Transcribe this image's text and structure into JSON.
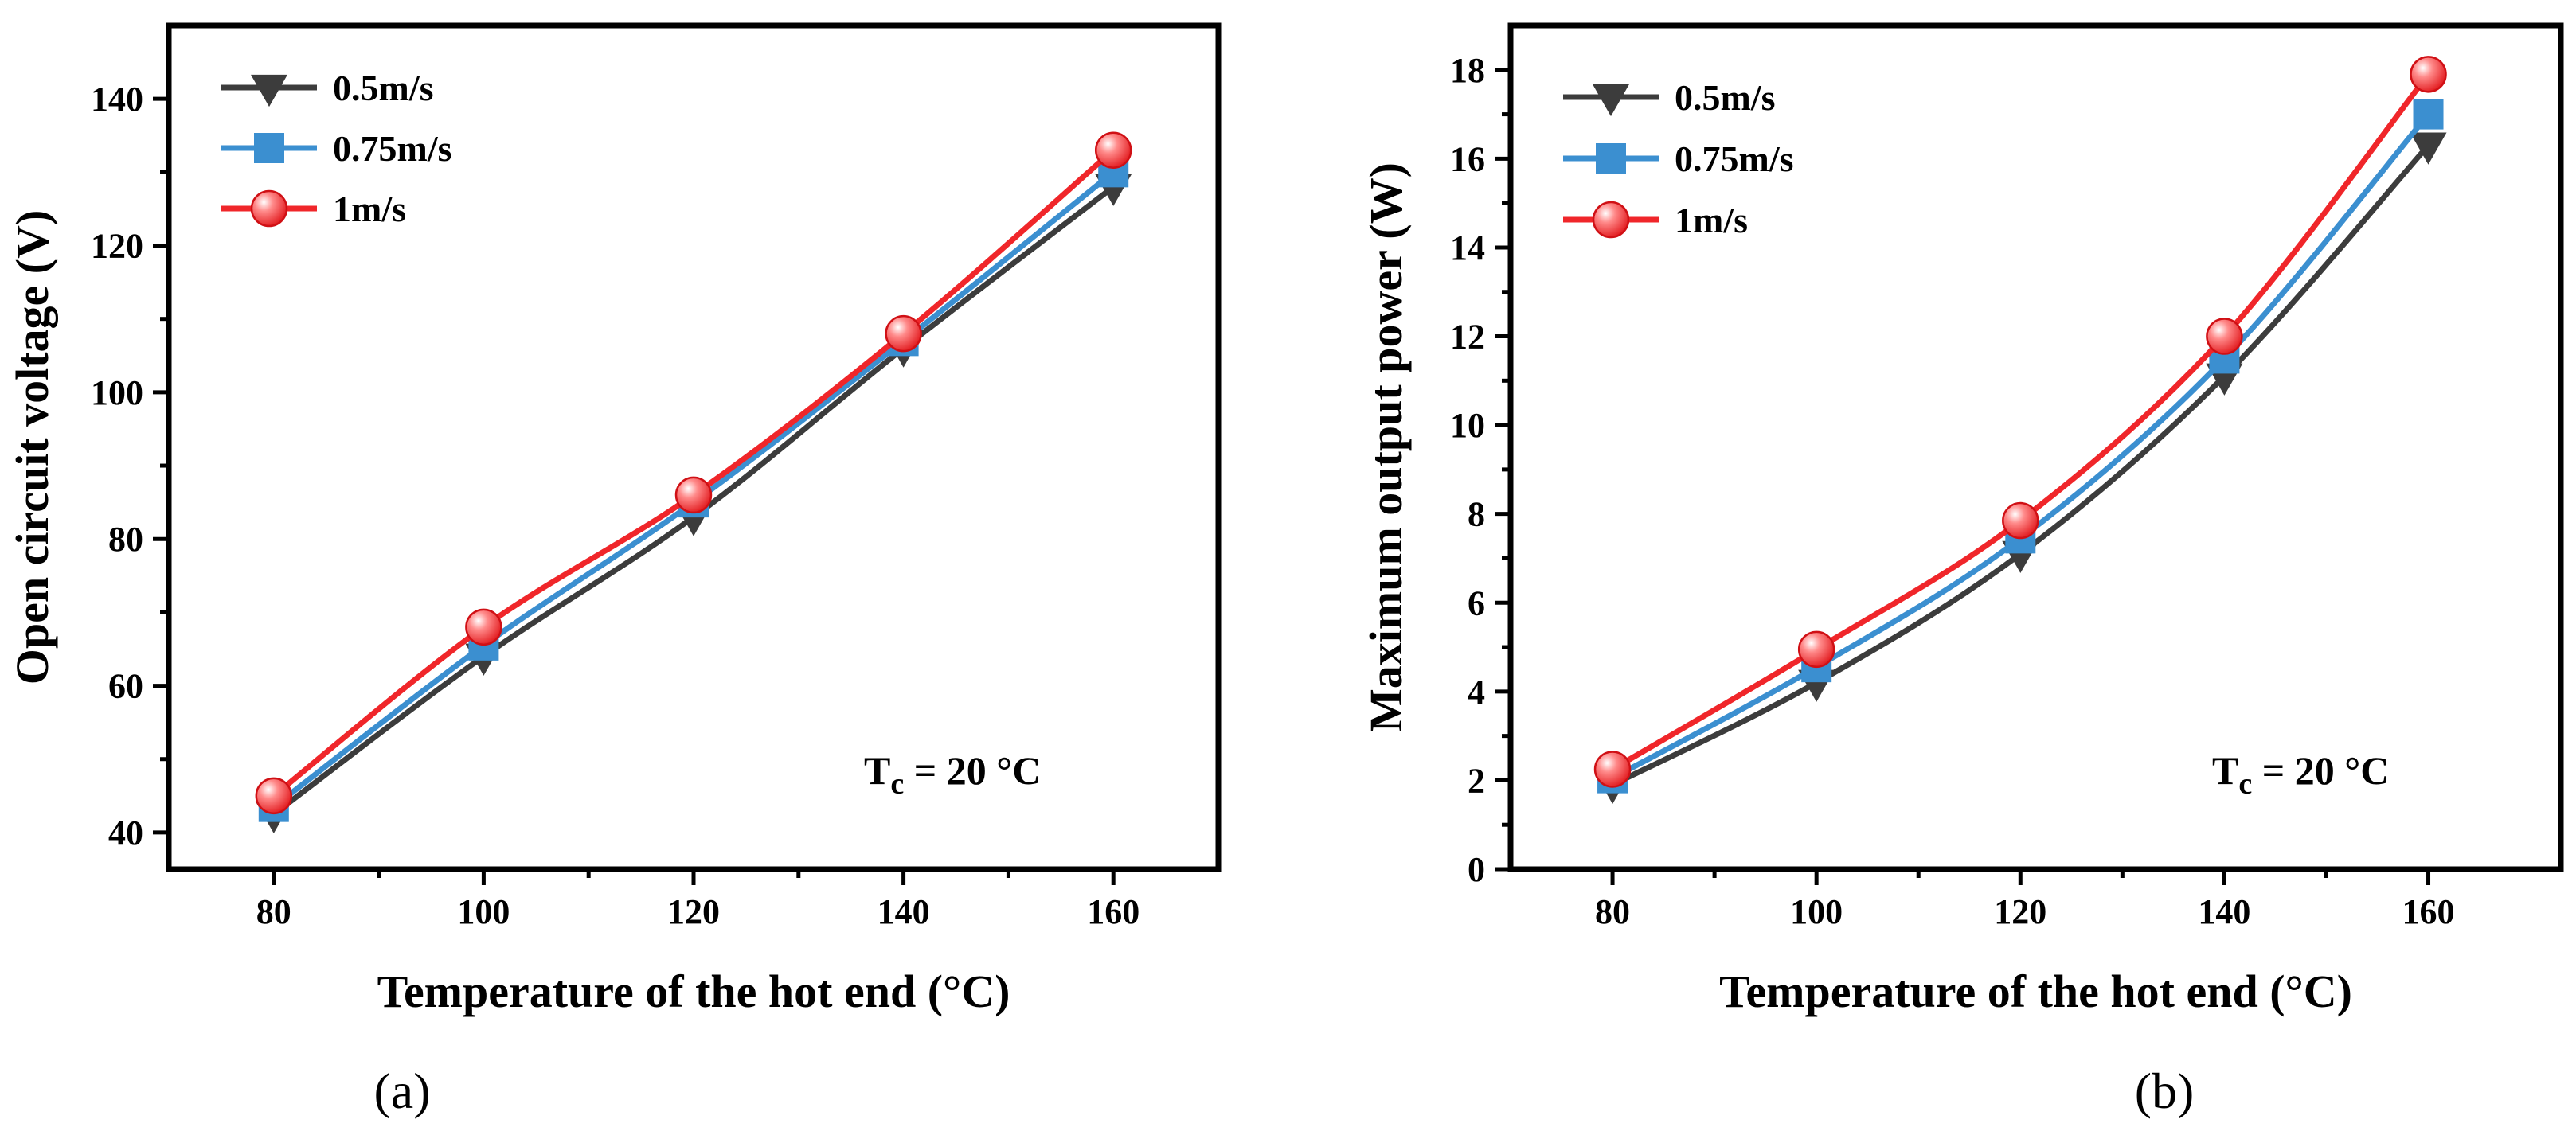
{
  "chart_data": [
    {
      "type": "line",
      "panel": "(a)",
      "title": "",
      "xlabel": "Temperature of the hot end (°C)",
      "ylabel": "Open circuit voltage (V)",
      "x": [
        80,
        100,
        120,
        140,
        160
      ],
      "xlim": [
        70,
        170
      ],
      "ylim": [
        35,
        150
      ],
      "xticks": [
        80,
        100,
        120,
        140,
        160
      ],
      "yticks": [
        40,
        60,
        80,
        100,
        120,
        140
      ],
      "grid": false,
      "legend_position": "top-left",
      "annotation": {
        "main": "T",
        "sub": "c",
        "rest": " = 20 °C"
      },
      "series": [
        {
          "name": "0.5m/s",
          "color": "#3c3c3c",
          "marker": "triangle-down",
          "values": [
            42.5,
            64,
            83,
            106,
            128
          ]
        },
        {
          "name": "0.75m/s",
          "color": "#3b8fd0",
          "marker": "square",
          "values": [
            43.5,
            65.5,
            85,
            107,
            130
          ]
        },
        {
          "name": "1m/s",
          "color": "#f0262a",
          "marker": "sphere",
          "values": [
            45,
            68,
            86,
            108,
            133
          ]
        }
      ]
    },
    {
      "type": "line",
      "panel": "(b)",
      "title": "",
      "xlabel": "Temperature of the hot end (°C)",
      "ylabel": "Maximum output power (W)",
      "x": [
        80,
        100,
        120,
        140,
        160
      ],
      "xlim": [
        70,
        173
      ],
      "ylim": [
        0,
        19
      ],
      "xticks": [
        80,
        100,
        120,
        140,
        160
      ],
      "yticks": [
        0,
        2,
        4,
        6,
        8,
        10,
        12,
        14,
        16,
        18
      ],
      "grid": false,
      "legend_position": "top-left",
      "annotation": {
        "main": "T",
        "sub": "c",
        "rest": " = 20 °C"
      },
      "series": [
        {
          "name": "0.5m/s",
          "color": "#3c3c3c",
          "marker": "triangle-down",
          "values": [
            1.9,
            4.2,
            7.1,
            11.1,
            16.3
          ]
        },
        {
          "name": "0.75m/s",
          "color": "#3b8fd0",
          "marker": "square",
          "values": [
            2.05,
            4.55,
            7.45,
            11.5,
            17.0
          ]
        },
        {
          "name": "1m/s",
          "color": "#f0262a",
          "marker": "sphere",
          "values": [
            2.25,
            4.95,
            7.85,
            12.0,
            17.9
          ]
        }
      ]
    }
  ]
}
